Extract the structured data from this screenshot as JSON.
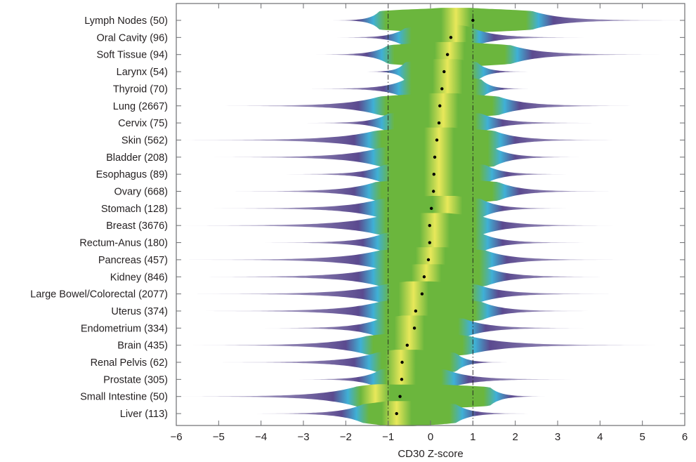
{
  "chart_data": {
    "type": "violin",
    "title": "",
    "xlabel": "CD30 Z-score",
    "ylabel": "",
    "xlim": [
      -6,
      6
    ],
    "xticks": [
      -6,
      -5,
      -4,
      -3,
      -2,
      -1,
      0,
      1,
      2,
      3,
      4,
      5,
      6
    ],
    "xtick_labels": [
      "−6",
      "−5",
      "−4",
      "−3",
      "−2",
      "−1",
      "0",
      "1",
      "2",
      "3",
      "4",
      "5",
      "6"
    ],
    "reference_lines": [
      -1,
      1
    ],
    "reference_line_style": "dash-dot",
    "grid": false,
    "legend": "none",
    "colormap": [
      "#5b4a8f",
      "#3fb0d6",
      "#6bb63d",
      "#e8e85a"
    ],
    "marker_color": "#000000",
    "categories": [
      {
        "label": "Lymph Nodes (50)",
        "name": "Lymph Nodes",
        "n": 50,
        "median": 1.0,
        "min": -2.3,
        "max": 5.9,
        "core": [
          -1.2,
          2.4
        ],
        "peak": 0.6
      },
      {
        "label": "Oral Cavity (96)",
        "name": "Oral Cavity",
        "n": 96,
        "median": 0.48,
        "min": -2.2,
        "max": 3.6,
        "core": [
          -0.6,
          1.0
        ],
        "peak": 0.6
      },
      {
        "label": "Soft Tissue (94)",
        "name": "Soft Tissue",
        "n": 94,
        "median": 0.4,
        "min": -2.7,
        "max": 5.4,
        "core": [
          -1.0,
          1.9
        ],
        "peak": 0.45
      },
      {
        "label": "Larynx (54)",
        "name": "Larynx",
        "n": 54,
        "median": 0.32,
        "min": -1.5,
        "max": 2.3,
        "core": [
          -0.6,
          1.1
        ],
        "peak": 0.4
      },
      {
        "label": "Thyroid (70)",
        "name": "Thyroid",
        "n": 70,
        "median": 0.27,
        "min": -2.8,
        "max": 2.3,
        "core": [
          -0.6,
          1.2
        ],
        "peak": 0.4
      },
      {
        "label": "Lung (2667)",
        "name": "Lung",
        "n": 2667,
        "median": 0.22,
        "min": -5.0,
        "max": 4.8,
        "core": [
          -1.2,
          1.6
        ],
        "peak": 0.3
      },
      {
        "label": "Cervix (75)",
        "name": "Cervix",
        "n": 75,
        "median": 0.2,
        "min": -2.9,
        "max": 3.8,
        "core": [
          -1.0,
          1.2
        ],
        "peak": 0.3
      },
      {
        "label": "Skin (562)",
        "name": "Skin",
        "n": 562,
        "median": 0.15,
        "min": -5.8,
        "max": 4.3,
        "core": [
          -1.3,
          1.5
        ],
        "peak": 0.2
      },
      {
        "label": "Bladder (208)",
        "name": "Bladder",
        "n": 208,
        "median": 0.1,
        "min": -5.1,
        "max": 3.5,
        "core": [
          -1.2,
          1.5
        ],
        "peak": 0.2
      },
      {
        "label": "Esophagus (89)",
        "name": "Esophagus",
        "n": 89,
        "median": 0.08,
        "min": -3.4,
        "max": 3.2,
        "core": [
          -1.1,
          1.3
        ],
        "peak": 0.2
      },
      {
        "label": "Ovary (668)",
        "name": "Ovary",
        "n": 668,
        "median": 0.07,
        "min": -4.6,
        "max": 4.2,
        "core": [
          -1.3,
          1.6
        ],
        "peak": 0.2
      },
      {
        "label": "Stomach (128)",
        "name": "Stomach",
        "n": 128,
        "median": 0.02,
        "min": -5.1,
        "max": 3.2,
        "core": [
          -1.2,
          1.2
        ],
        "peak": 0.4
      },
      {
        "label": "Breast (3676)",
        "name": "Breast",
        "n": 3676,
        "median": -0.02,
        "min": -5.8,
        "max": 4.3,
        "core": [
          -1.2,
          1.2
        ],
        "peak": 0.1
      },
      {
        "label": "Rectum-Anus (180)",
        "name": "Rectum-Anus",
        "n": 180,
        "median": -0.02,
        "min": -3.9,
        "max": 3.6,
        "core": [
          -1.1,
          1.2
        ],
        "peak": 0.1
      },
      {
        "label": "Pancreas (457)",
        "name": "Pancreas",
        "n": 457,
        "median": -0.05,
        "min": -5.7,
        "max": 4.3,
        "core": [
          -1.2,
          1.3
        ],
        "peak": 0.0
      },
      {
        "label": "Kidney (846)",
        "name": "Kidney",
        "n": 846,
        "median": -0.15,
        "min": -5.4,
        "max": 4.1,
        "core": [
          -1.2,
          1.3
        ],
        "peak": -0.1
      },
      {
        "label": "Large Bowel/Colorectal (2077)",
        "name": "Large Bowel/Colorectal",
        "n": 2077,
        "median": -0.2,
        "min": -5.5,
        "max": 4.2,
        "core": [
          -1.1,
          1.1
        ],
        "peak": -0.4
      },
      {
        "label": "Uterus (374)",
        "name": "Uterus",
        "n": 374,
        "median": -0.35,
        "min": -5.3,
        "max": 3.7,
        "core": [
          -1.2,
          1.2
        ],
        "peak": -0.4
      },
      {
        "label": "Endometrium (334)",
        "name": "Endometrium",
        "n": 334,
        "median": -0.38,
        "min": -3.9,
        "max": 3.6,
        "core": [
          -1.2,
          0.8
        ],
        "peak": -0.5
      },
      {
        "label": "Brain (435)",
        "name": "Brain",
        "n": 435,
        "median": -0.55,
        "min": -5.6,
        "max": 5.3,
        "core": [
          -1.5,
          0.9
        ],
        "peak": -0.5
      },
      {
        "label": "Renal Pelvis (62)",
        "name": "Renal Pelvis",
        "n": 62,
        "median": -0.67,
        "min": -4.9,
        "max": 1.8,
        "core": [
          -1.3,
          0.6
        ],
        "peak": -0.7
      },
      {
        "label": "Prostate (305)",
        "name": "Prostate",
        "n": 305,
        "median": -0.68,
        "min": -3.1,
        "max": 3.3,
        "core": [
          -1.2,
          0.4
        ],
        "peak": -0.7
      },
      {
        "label": "Small Intestine (50)",
        "name": "Small Intestine",
        "n": 50,
        "median": -0.72,
        "min": -5.9,
        "max": 2.7,
        "core": [
          -1.8,
          1.4
        ],
        "peak": -1.3
      },
      {
        "label": "Liver (113)",
        "name": "Liver",
        "n": 113,
        "median": -0.8,
        "min": -4.1,
        "max": 2.3,
        "core": [
          -1.6,
          0.6
        ],
        "peak": -0.8
      }
    ]
  }
}
